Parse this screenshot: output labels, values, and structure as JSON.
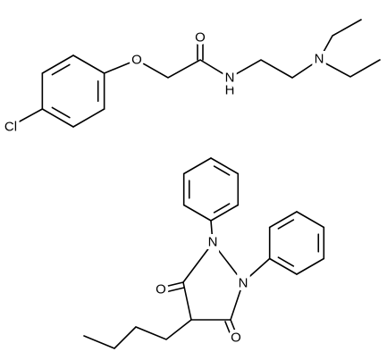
{
  "molecules": [
    {
      "atoms": [
        "Cl",
        "O",
        "O",
        "H",
        "N",
        "N"
      ]
    },
    {
      "atoms": [
        "O",
        "O",
        "N",
        "N"
      ]
    }
  ]
}
